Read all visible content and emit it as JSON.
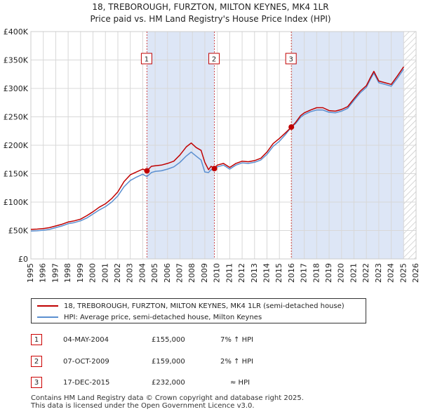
{
  "chart_data": {
    "type": "line",
    "title": "18, TREBOROUGH, FURZTON, MILTON KEYNES, MK4 1LR",
    "subtitle": "Price paid vs. HM Land Registry's House Price Index (HPI)",
    "xlim": [
      1995,
      2026
    ],
    "ylim": [
      0,
      400000
    ],
    "y_ticks": [
      {
        "value": 0,
        "label": "£0"
      },
      {
        "value": 50000,
        "label": "£50K"
      },
      {
        "value": 100000,
        "label": "£100K"
      },
      {
        "value": 150000,
        "label": "£150K"
      },
      {
        "value": 200000,
        "label": "£200K"
      },
      {
        "value": 250000,
        "label": "£250K"
      },
      {
        "value": 300000,
        "label": "£300K"
      },
      {
        "value": 350000,
        "label": "£350K"
      },
      {
        "value": 400000,
        "label": "£400K"
      }
    ],
    "x_ticks": [
      "1995",
      "1996",
      "1997",
      "1998",
      "1999",
      "2000",
      "2001",
      "2002",
      "2003",
      "2004",
      "2005",
      "2006",
      "2007",
      "2008",
      "2009",
      "2010",
      "2011",
      "2012",
      "2013",
      "2014",
      "2015",
      "2016",
      "2017",
      "2018",
      "2019",
      "2020",
      "2021",
      "2022",
      "2023",
      "2024",
      "2025",
      "2026"
    ],
    "grid": true,
    "shaded_regions": [
      [
        2004.34,
        2009.77
      ],
      [
        2015.96,
        2025.0
      ]
    ],
    "future_hatch_from": 2025.0,
    "colors": {
      "property": "#c00000",
      "hpi": "#5b8fd0",
      "shade": "#dde6f6",
      "marker": "#c00000",
      "grid": "#d8d8d8"
    },
    "series": [
      {
        "name": "18, TREBOROUGH, FURZTON, MILTON KEYNES, MK4 1LR (semi-detached house)",
        "color": "#c00000",
        "x": [
          1995,
          1995.5,
          1996,
          1996.5,
          1997,
          1997.5,
          1998,
          1998.5,
          1999,
          1999.5,
          2000,
          2000.5,
          2001,
          2001.5,
          2002,
          2002.5,
          2003,
          2003.5,
          2004,
          2004.34,
          2004.7,
          2005,
          2005.5,
          2006,
          2006.5,
          2007,
          2007.5,
          2007.9,
          2008.3,
          2008.7,
          2009,
          2009.3,
          2009.5,
          2009.77,
          2010,
          2010.5,
          2011,
          2011.5,
          2012,
          2012.5,
          2013,
          2013.5,
          2014,
          2014.5,
          2015,
          2015.5,
          2015.96,
          2016.3,
          2016.7,
          2017,
          2017.5,
          2018,
          2018.5,
          2019,
          2019.5,
          2020,
          2020.5,
          2021,
          2021.5,
          2022,
          2022.3,
          2022.6,
          2023,
          2023.5,
          2024,
          2024.5,
          2025
        ],
        "values": [
          52000,
          52500,
          53500,
          55000,
          58000,
          61000,
          65000,
          67000,
          70000,
          76000,
          83000,
          91000,
          97000,
          106000,
          118000,
          136000,
          148000,
          153000,
          158000,
          155000,
          163000,
          164000,
          165000,
          168000,
          172000,
          183000,
          197000,
          204000,
          196000,
          191000,
          170000,
          157000,
          163000,
          159000,
          165000,
          168000,
          161000,
          168000,
          172000,
          171000,
          173000,
          177000,
          188000,
          203000,
          212000,
          222000,
          232000,
          240000,
          252000,
          257000,
          262000,
          266000,
          266000,
          261000,
          260000,
          263000,
          268000,
          282000,
          295000,
          305000,
          318000,
          330000,
          313000,
          310000,
          307000,
          322000,
          338000
        ]
      },
      {
        "name": "HPI: Average price, semi-detached house, Milton Keynes",
        "color": "#5b8fd0",
        "x": [
          1995,
          1995.5,
          1996,
          1996.5,
          1997,
          1997.5,
          1998,
          1998.5,
          1999,
          1999.5,
          2000,
          2000.5,
          2001,
          2001.5,
          2002,
          2002.5,
          2003,
          2003.5,
          2004,
          2004.34,
          2004.7,
          2005,
          2005.5,
          2006,
          2006.5,
          2007,
          2007.5,
          2007.9,
          2008.3,
          2008.7,
          2009,
          2009.3,
          2009.5,
          2009.77,
          2010,
          2010.5,
          2011,
          2011.5,
          2012,
          2012.5,
          2013,
          2013.5,
          2014,
          2014.5,
          2015,
          2015.5,
          2015.96,
          2016.3,
          2016.7,
          2017,
          2017.5,
          2018,
          2018.5,
          2019,
          2019.5,
          2020,
          2020.5,
          2021,
          2021.5,
          2022,
          2022.3,
          2022.6,
          2023,
          2023.5,
          2024,
          2024.5,
          2025
        ],
        "values": [
          49000,
          49500,
          50500,
          52000,
          55000,
          58000,
          62000,
          64000,
          67000,
          72000,
          79000,
          86000,
          92000,
          100000,
          111000,
          127000,
          138000,
          144000,
          149000,
          145000,
          152000,
          154000,
          155000,
          158000,
          162000,
          170000,
          181000,
          188000,
          181000,
          174000,
          153000,
          152000,
          157000,
          156000,
          162000,
          165000,
          158000,
          165000,
          169000,
          168000,
          170000,
          174000,
          184000,
          198000,
          207000,
          219000,
          232000,
          238000,
          249000,
          254000,
          259000,
          262000,
          262000,
          258000,
          257000,
          260000,
          265000,
          279000,
          292000,
          302000,
          315000,
          327000,
          310000,
          307000,
          304000,
          318000,
          334000
        ]
      }
    ],
    "markers": [
      {
        "label": "1",
        "x": 2004.34,
        "y": 155000
      },
      {
        "label": "2",
        "x": 2009.77,
        "y": 159000
      },
      {
        "label": "3",
        "x": 2015.96,
        "y": 232000
      }
    ]
  },
  "legend": {
    "property_label": "18, TREBOROUGH, FURZTON, MILTON KEYNES, MK4 1LR (semi-detached house)",
    "hpi_label": "HPI: Average price, semi-detached house, Milton Keynes"
  },
  "transactions": [
    {
      "num": "1",
      "date": "04-MAY-2004",
      "price": "£155,000",
      "rel": "7% ↑ HPI"
    },
    {
      "num": "2",
      "date": "07-OCT-2009",
      "price": "£159,000",
      "rel": "2% ↑ HPI"
    },
    {
      "num": "3",
      "date": "17-DEC-2015",
      "price": "£232,000",
      "rel": "≈ HPI"
    }
  ],
  "footer": {
    "line1": "Contains HM Land Registry data © Crown copyright and database right 2025.",
    "line2": "This data is licensed under the Open Government Licence v3.0."
  }
}
